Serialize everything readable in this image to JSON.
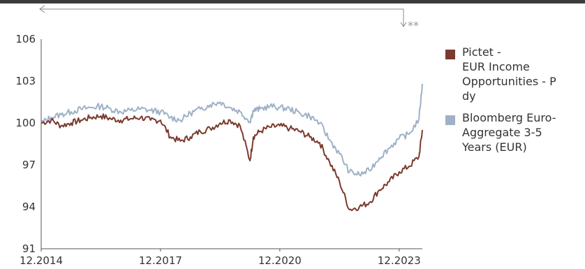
{
  "chart_data": {
    "type": "line",
    "annotation": "**",
    "x_ticks": [
      "12.2014",
      "12.2017",
      "12.2020",
      "12.2023"
    ],
    "x_range": [
      "2014-12",
      "2024-07"
    ],
    "y_ticks": [
      "106",
      "103",
      "100",
      "97",
      "94",
      "91"
    ],
    "ylim": [
      91,
      106
    ],
    "grid": false,
    "legend_position": "right",
    "series": [
      {
        "name": "Pictet - EUR Income Opportunities - P dy",
        "name_lines": [
          "Pictet -",
          "EUR Income",
          "Opportunities - P",
          "dy"
        ],
        "color": "#7b3a2e",
        "x": [
          "2014-12",
          "2015-03",
          "2015-06",
          "2015-09",
          "2015-12",
          "2016-03",
          "2016-06",
          "2016-09",
          "2016-12",
          "2017-03",
          "2017-06",
          "2017-09",
          "2017-12",
          "2018-03",
          "2018-06",
          "2018-09",
          "2018-12",
          "2019-03",
          "2019-06",
          "2019-09",
          "2019-12",
          "2020-03",
          "2020-04",
          "2020-06",
          "2020-09",
          "2020-12",
          "2021-03",
          "2021-06",
          "2021-09",
          "2021-12",
          "2022-03",
          "2022-06",
          "2022-09",
          "2022-12",
          "2023-03",
          "2023-06",
          "2023-09",
          "2023-12",
          "2024-03",
          "2024-06",
          "2024-07"
        ],
        "values": [
          100.0,
          100.2,
          99.8,
          100.0,
          100.2,
          100.4,
          100.5,
          100.3,
          100.2,
          100.3,
          100.4,
          100.2,
          100.2,
          99.0,
          98.7,
          99.0,
          99.4,
          99.6,
          100.0,
          100.2,
          99.8,
          97.3,
          99.0,
          99.4,
          99.7,
          99.8,
          99.6,
          99.4,
          99.0,
          98.6,
          97.2,
          95.8,
          93.8,
          94.0,
          94.3,
          95.2,
          95.8,
          96.5,
          96.9,
          97.6,
          99.5
        ]
      },
      {
        "name": "Bloomberg Euro-Aggregate 3-5 Years (EUR)",
        "name_lines": [
          "Bloomberg Euro-",
          "Aggregate 3-5",
          "Years (EUR)"
        ],
        "color": "#9fb1c7",
        "x": [
          "2014-12",
          "2015-03",
          "2015-06",
          "2015-09",
          "2015-12",
          "2016-03",
          "2016-06",
          "2016-09",
          "2016-12",
          "2017-03",
          "2017-06",
          "2017-09",
          "2017-12",
          "2018-03",
          "2018-06",
          "2018-09",
          "2018-12",
          "2019-03",
          "2019-06",
          "2019-09",
          "2019-12",
          "2020-03",
          "2020-04",
          "2020-06",
          "2020-09",
          "2020-12",
          "2021-03",
          "2021-06",
          "2021-09",
          "2021-12",
          "2022-03",
          "2022-06",
          "2022-09",
          "2022-12",
          "2023-03",
          "2023-06",
          "2023-09",
          "2023-12",
          "2024-03",
          "2024-06",
          "2024-07"
        ],
        "values": [
          100.0,
          100.4,
          100.6,
          100.8,
          101.0,
          101.1,
          101.2,
          101.0,
          100.8,
          100.9,
          101.0,
          100.9,
          100.8,
          100.4,
          100.2,
          100.7,
          101.0,
          101.3,
          101.5,
          101.1,
          100.8,
          100.1,
          100.9,
          101.0,
          101.2,
          101.1,
          101.0,
          100.7,
          100.5,
          100.0,
          98.8,
          97.8,
          96.5,
          96.3,
          96.6,
          97.5,
          98.2,
          98.9,
          99.2,
          100.3,
          102.8
        ]
      }
    ]
  }
}
